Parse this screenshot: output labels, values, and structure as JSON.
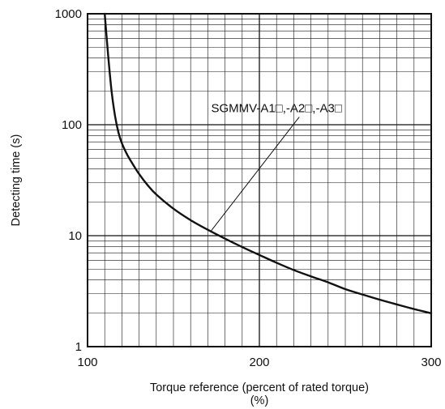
{
  "chart_data": {
    "type": "line",
    "title": "",
    "xlabel": "Torque reference (percent of rated torque)",
    "xlabel_unit": "(%)",
    "ylabel": "Detecting time (s)",
    "xlim": [
      100,
      300
    ],
    "ylim": [
      1,
      1000
    ],
    "x_scale": "linear",
    "y_scale": "log",
    "x_ticks": [
      100,
      200,
      300
    ],
    "x_tick_labels": [
      "100",
      "200",
      "300"
    ],
    "y_ticks": [
      1,
      10,
      100,
      1000
    ],
    "y_tick_labels": [
      "1",
      "10",
      "100",
      "1000"
    ],
    "x_minor_step": 10,
    "grid": true,
    "series": [
      {
        "name": "SGMMV-A1□,-A2□,-A3□",
        "color": "#111111",
        "x": [
          110,
          112,
          114,
          116,
          118,
          120,
          123,
          126,
          130,
          135,
          140,
          150,
          160,
          170,
          180,
          190,
          200,
          210,
          220,
          230,
          240,
          250,
          260,
          270,
          280,
          290,
          300
        ],
        "y": [
          1000,
          420,
          200,
          120,
          85,
          68,
          54,
          45,
          36,
          28.5,
          23.5,
          17.5,
          13.8,
          11.3,
          9.4,
          7.9,
          6.7,
          5.7,
          4.9,
          4.3,
          3.8,
          3.3,
          2.95,
          2.65,
          2.4,
          2.18,
          2.0
        ]
      }
    ],
    "annotation": {
      "text": "SGMMV-A1□,-A2□,-A3□",
      "points_to": {
        "x": 172,
        "y": 11.1
      },
      "text_at": {
        "x": 210,
        "y": 130
      }
    }
  }
}
